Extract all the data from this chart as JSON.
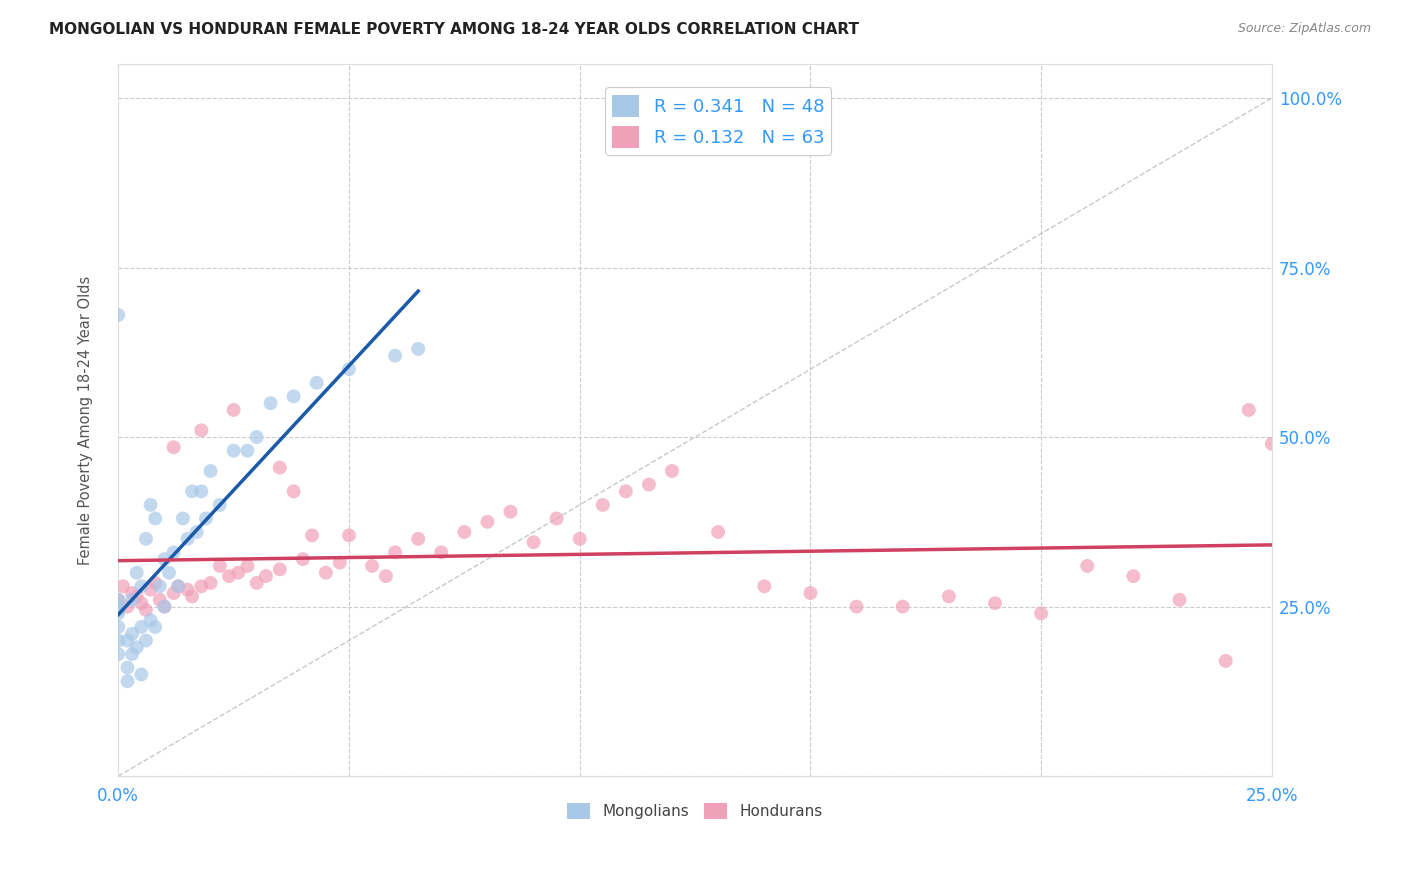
{
  "title": "MONGOLIAN VS HONDURAN FEMALE POVERTY AMONG 18-24 YEAR OLDS CORRELATION CHART",
  "source": "Source: ZipAtlas.com",
  "ylabel": "Female Poverty Among 18-24 Year Olds",
  "background_color": "#ffffff",
  "grid_color": "#cccccc",
  "mongolian_color": "#a8c8e8",
  "honduran_color": "#f0a0b8",
  "mongolian_line_color": "#1a5aaa",
  "honduran_line_color": "#d04060",
  "diag_line_color": "#bbbbbb",
  "R_mongolian": 0.341,
  "N_mongolian": 48,
  "R_honduran": 0.132,
  "N_honduran": 63,
  "xlim": [
    0.0,
    0.25
  ],
  "ylim": [
    0.0,
    1.05
  ],
  "xticks": [
    0.0,
    0.05,
    0.1,
    0.15,
    0.2,
    0.25
  ],
  "yticks": [
    0.0,
    0.25,
    0.5,
    0.75,
    1.0
  ],
  "mongolian_x": [
    0.0,
    0.0,
    0.0,
    0.0,
    0.0,
    0.0,
    0.0,
    0.0,
    0.002,
    0.002,
    0.002,
    0.003,
    0.003,
    0.003,
    0.004,
    0.004,
    0.005,
    0.005,
    0.005,
    0.006,
    0.006,
    0.007,
    0.007,
    0.008,
    0.008,
    0.009,
    0.01,
    0.01,
    0.011,
    0.012,
    0.013,
    0.014,
    0.015,
    0.016,
    0.017,
    0.018,
    0.019,
    0.02,
    0.022,
    0.025,
    0.028,
    0.03,
    0.033,
    0.038,
    0.043,
    0.05,
    0.06,
    0.065
  ],
  "mongolian_y": [
    0.18,
    0.2,
    0.22,
    0.24,
    0.245,
    0.25,
    0.26,
    0.68,
    0.14,
    0.16,
    0.2,
    0.18,
    0.21,
    0.26,
    0.19,
    0.3,
    0.15,
    0.22,
    0.28,
    0.2,
    0.35,
    0.23,
    0.4,
    0.22,
    0.38,
    0.28,
    0.25,
    0.32,
    0.3,
    0.33,
    0.28,
    0.38,
    0.35,
    0.42,
    0.36,
    0.42,
    0.38,
    0.45,
    0.4,
    0.48,
    0.48,
    0.5,
    0.55,
    0.56,
    0.58,
    0.6,
    0.62,
    0.63
  ],
  "honduran_x": [
    0.0,
    0.001,
    0.002,
    0.003,
    0.004,
    0.005,
    0.006,
    0.007,
    0.008,
    0.009,
    0.01,
    0.012,
    0.013,
    0.015,
    0.016,
    0.018,
    0.02,
    0.022,
    0.024,
    0.026,
    0.028,
    0.03,
    0.032,
    0.035,
    0.038,
    0.04,
    0.042,
    0.045,
    0.048,
    0.05,
    0.055,
    0.058,
    0.06,
    0.065,
    0.07,
    0.075,
    0.08,
    0.085,
    0.09,
    0.095,
    0.1,
    0.105,
    0.11,
    0.115,
    0.12,
    0.13,
    0.14,
    0.15,
    0.16,
    0.17,
    0.18,
    0.19,
    0.2,
    0.21,
    0.22,
    0.23,
    0.24,
    0.245,
    0.25,
    0.012,
    0.018,
    0.025,
    0.035
  ],
  "honduran_y": [
    0.26,
    0.28,
    0.25,
    0.27,
    0.265,
    0.255,
    0.245,
    0.275,
    0.285,
    0.26,
    0.25,
    0.27,
    0.28,
    0.275,
    0.265,
    0.28,
    0.285,
    0.31,
    0.295,
    0.3,
    0.31,
    0.285,
    0.295,
    0.305,
    0.42,
    0.32,
    0.355,
    0.3,
    0.315,
    0.355,
    0.31,
    0.295,
    0.33,
    0.35,
    0.33,
    0.36,
    0.375,
    0.39,
    0.345,
    0.38,
    0.35,
    0.4,
    0.42,
    0.43,
    0.45,
    0.36,
    0.28,
    0.27,
    0.25,
    0.25,
    0.265,
    0.255,
    0.24,
    0.31,
    0.295,
    0.26,
    0.17,
    0.54,
    0.49,
    0.485,
    0.51,
    0.54,
    0.455
  ]
}
